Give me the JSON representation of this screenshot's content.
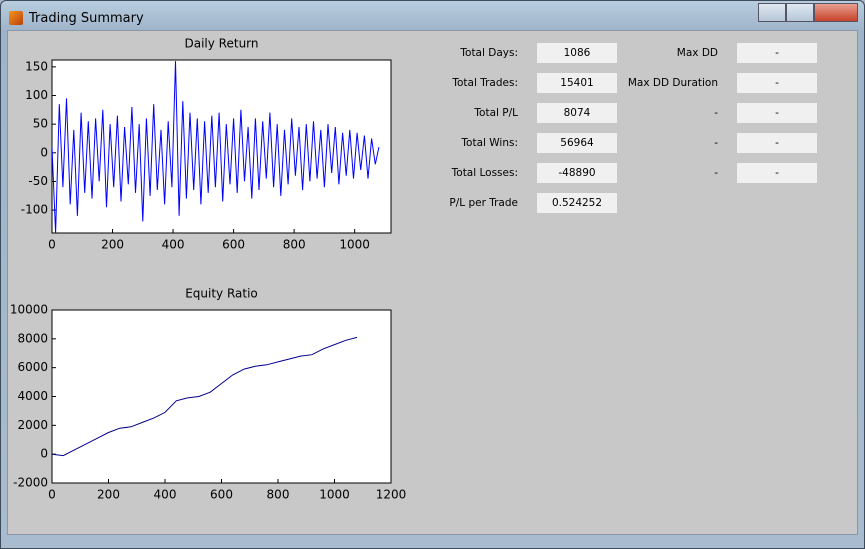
{
  "window": {
    "title": "Trading Summary"
  },
  "chart_data": [
    {
      "type": "line",
      "title": "Daily Return",
      "color": "#0000ff",
      "x": [
        0,
        12,
        24,
        36,
        48,
        60,
        72,
        84,
        96,
        108,
        120,
        132,
        144,
        156,
        168,
        180,
        192,
        204,
        216,
        228,
        240,
        252,
        264,
        276,
        288,
        300,
        312,
        324,
        336,
        348,
        360,
        372,
        384,
        396,
        408,
        420,
        432,
        444,
        456,
        468,
        480,
        492,
        504,
        516,
        528,
        540,
        552,
        564,
        576,
        588,
        600,
        612,
        624,
        636,
        648,
        660,
        672,
        684,
        696,
        708,
        720,
        732,
        744,
        756,
        768,
        780,
        792,
        804,
        816,
        828,
        840,
        852,
        864,
        876,
        888,
        900,
        912,
        924,
        936,
        948,
        960,
        972,
        984,
        996,
        1008,
        1020,
        1032,
        1044,
        1056,
        1068,
        1080
      ],
      "values": [
        10,
        -140,
        85,
        -60,
        95,
        -90,
        40,
        -110,
        70,
        -70,
        55,
        -80,
        60,
        -50,
        75,
        -95,
        50,
        -60,
        65,
        -85,
        45,
        -55,
        80,
        -70,
        50,
        -120,
        60,
        -75,
        85,
        -65,
        40,
        -90,
        55,
        -60,
        160,
        -110,
        90,
        -80,
        70,
        -65,
        60,
        -90,
        55,
        -70,
        65,
        -60,
        70,
        -85,
        50,
        -55,
        60,
        -70,
        75,
        -50,
        45,
        -80,
        60,
        -65,
        55,
        -45,
        70,
        -60,
        50,
        -75,
        40,
        -55,
        60,
        -40,
        45,
        -65,
        50,
        -50,
        55,
        -45,
        40,
        -60,
        50,
        -35,
        45,
        -55,
        35,
        -40,
        40,
        -45,
        35,
        -30,
        30,
        -45,
        25,
        -20,
        10
      ],
      "xlim": [
        0,
        1120
      ],
      "ylim": [
        -140,
        162
      ],
      "xticks": [
        0,
        200,
        400,
        600,
        800,
        1000
      ],
      "yticks": [
        -100,
        -50,
        0,
        50,
        100,
        150
      ]
    },
    {
      "type": "line",
      "title": "Equity Ratio",
      "color": "#00008b",
      "x": [
        0,
        40,
        80,
        120,
        160,
        200,
        240,
        280,
        320,
        360,
        400,
        440,
        480,
        520,
        560,
        600,
        640,
        680,
        720,
        760,
        800,
        840,
        880,
        920,
        960,
        1000,
        1040,
        1080
      ],
      "values": [
        0,
        -100,
        300,
        700,
        1100,
        1500,
        1800,
        1900,
        2200,
        2500,
        2900,
        3700,
        3900,
        4000,
        4300,
        4900,
        5500,
        5900,
        6100,
        6200,
        6400,
        6600,
        6800,
        6900,
        7300,
        7600,
        7900,
        8100
      ],
      "xlim": [
        0,
        1200
      ],
      "ylim": [
        -2000,
        10000
      ],
      "xticks": [
        0,
        200,
        400,
        600,
        800,
        1000,
        1200
      ],
      "yticks": [
        -2000,
        0,
        2000,
        4000,
        6000,
        8000,
        10000
      ]
    }
  ],
  "summary": {
    "left": [
      {
        "label": "Total Days:",
        "value": 1086
      },
      {
        "label": "Total Trades:",
        "value": 15401
      },
      {
        "label": "Total P/L",
        "value": 8074
      },
      {
        "label": "Total Wins:",
        "value": 56964
      },
      {
        "label": "Total Losses:",
        "value": -48890
      },
      {
        "label": "P/L per Trade",
        "value": 0.524252
      }
    ],
    "right": [
      {
        "label": "Max DD",
        "value": "-"
      },
      {
        "label": "Max DD Duration",
        "value": "-"
      },
      {
        "label": "-",
        "value": "-"
      },
      {
        "label": "-",
        "value": "-"
      },
      {
        "label": "-",
        "value": "-"
      }
    ]
  }
}
